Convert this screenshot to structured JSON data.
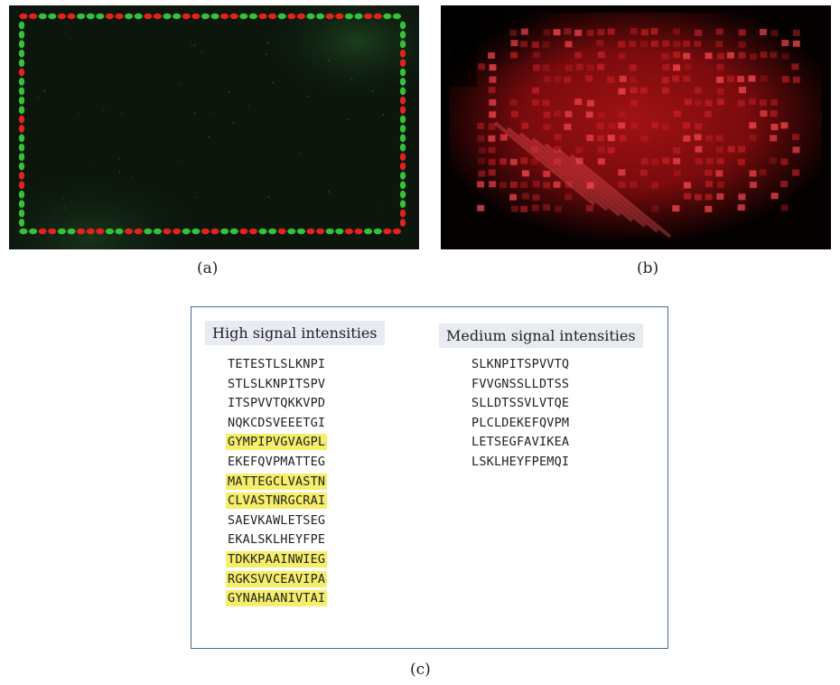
{
  "panels": {
    "a": {
      "label": "(a)",
      "description": "Fluorescent peptide array scan with green and red border control spots"
    },
    "b": {
      "label": "(b)",
      "description": "Fluorescent peptide array scan with red signal"
    },
    "c": {
      "label": "(c)"
    }
  },
  "colors": {
    "highlight": "#f6ee6a",
    "header_bg": "#e8ebf2",
    "box_border": "#4a6a8a",
    "spot_green": "#35c23a",
    "spot_red": "#e2221c"
  },
  "table": {
    "high": {
      "header": "High signal intensities",
      "sequences": [
        {
          "text": "TETESTLSLKNPI",
          "highlight": false
        },
        {
          "text": "STLSLKNPITSPV",
          "highlight": false
        },
        {
          "text": "ITSPVVTQKKVPD",
          "highlight": false
        },
        {
          "text": "NQKCDSVEEETGI",
          "highlight": false
        },
        {
          "text": "GYMPIPVGVAGPL",
          "highlight": true
        },
        {
          "text": "EKEFQVPMATTEG",
          "highlight": false
        },
        {
          "text": "MATTEGCLVASTN",
          "highlight": true
        },
        {
          "text": "CLVASTNRGCRAI",
          "highlight": true
        },
        {
          "text": "SAEVKAWLETSEG",
          "highlight": false
        },
        {
          "text": "EKALSKLHEYFPE",
          "highlight": false
        },
        {
          "text": "TDKKPAAINWIEG",
          "highlight": true
        },
        {
          "text": "RGKSVVCEAVIPA",
          "highlight": true
        },
        {
          "text": "GYNAHAANIVTAI",
          "highlight": true
        }
      ]
    },
    "medium": {
      "header": "Medium signal intensities",
      "sequences": [
        {
          "text": "SLKNPITSPVVTQ",
          "highlight": false
        },
        {
          "text": "FVVGNSSLLDTSS",
          "highlight": false
        },
        {
          "text": "SLLDTSSVLVTQE",
          "highlight": false
        },
        {
          "text": "PLCLDEKEFQVPM",
          "highlight": false
        },
        {
          "text": "LETSEGFAVIKEA",
          "highlight": false
        },
        {
          "text": "LSKLHEYFPEMQI",
          "highlight": false
        }
      ]
    }
  }
}
